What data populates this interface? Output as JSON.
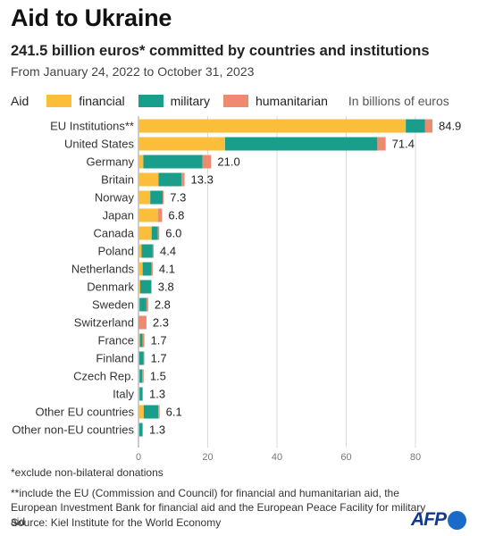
{
  "title": "Aid to Ukraine",
  "subtitle": "241.5 billion euros* committed by countries and institutions",
  "dates": "From January 24, 2022 to October 31, 2023",
  "legend": {
    "label": "Aid",
    "financial": "financial",
    "military": "military",
    "humanitarian": "humanitarian",
    "unit": "In billions of euros"
  },
  "notes": {
    "note1": "*exclude non-bilateral donations",
    "note2": "**include the EU (Commission and Council) for financial and humanitarian aid, the European Investment Bank for financial aid and the European Peace Facility for military aid",
    "source": "Source: Kiel Institute for the World Economy"
  },
  "logo": "AFP",
  "colors": {
    "financial": "#fbbe3a",
    "military": "#1a9e8c",
    "humanitarian": "#ee8a70"
  },
  "chart_data": {
    "type": "bar",
    "orientation": "horizontal",
    "stacked": true,
    "categories": [
      "EU Institutions**",
      "United States",
      "Germany",
      "Britain",
      "Norway",
      "Japan",
      "Canada",
      "Poland",
      "Netherlands",
      "Denmark",
      "Sweden",
      "Switzerland",
      "France",
      "Finland",
      "Czech Rep.",
      "Italy",
      "Other EU countries",
      "Other non-EU countries"
    ],
    "series": [
      {
        "name": "financial",
        "values": [
          77.2,
          25.0,
          1.4,
          5.8,
          3.4,
          5.6,
          3.8,
          0.9,
          1.2,
          0.5,
          0.3,
          0.0,
          0.4,
          0.2,
          0.3,
          0.3,
          1.5,
          0.2
        ]
      },
      {
        "name": "military",
        "values": [
          5.6,
          44.0,
          17.1,
          6.6,
          3.6,
          0.0,
          1.8,
          3.2,
          2.6,
          3.2,
          2.0,
          0.0,
          0.8,
          1.3,
          0.8,
          0.8,
          4.2,
          0.9
        ]
      },
      {
        "name": "humanitarian",
        "values": [
          2.1,
          2.4,
          2.5,
          0.9,
          0.3,
          1.2,
          0.4,
          0.3,
          0.3,
          0.1,
          0.5,
          2.3,
          0.5,
          0.2,
          0.4,
          0.2,
          0.4,
          0.2
        ]
      }
    ],
    "totals": [
      "84.9",
      "71.4",
      "21.0",
      "13.3",
      "7.3",
      "6.8",
      "6.0",
      "4.4",
      "4.1",
      "3.8",
      "2.8",
      "2.3",
      "1.7",
      "1.7",
      "1.5",
      "1.3",
      "6.1",
      "1.3"
    ],
    "xticks": [
      "0",
      "20",
      "40",
      "60",
      "80"
    ],
    "xlim": [
      0,
      85
    ],
    "grid": true
  }
}
